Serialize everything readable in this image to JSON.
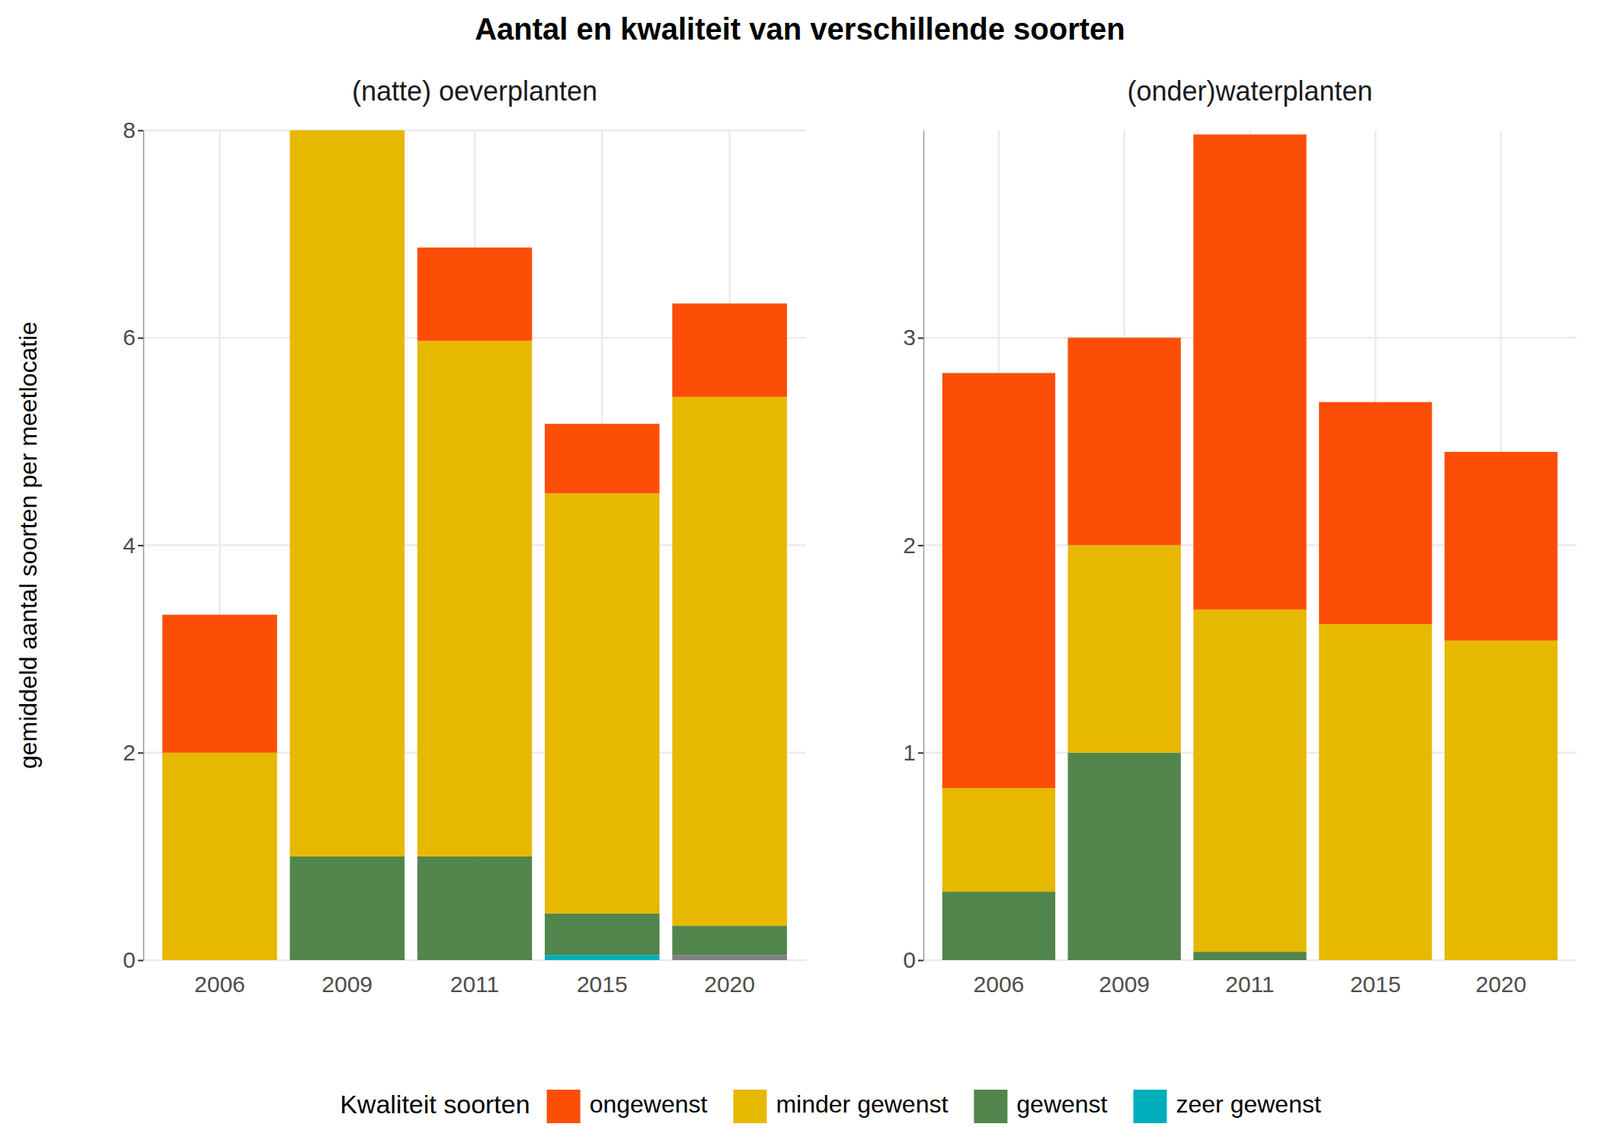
{
  "title": "Aantal en kwaliteit van verschillende soorten",
  "legend_title": "Kwaliteit soorten",
  "legend": "bottom",
  "chart_data": [
    {
      "type": "bar",
      "stacked": true,
      "grid": true,
      "subtitle": "(natte) oeverplanten",
      "y_label": "gemiddeld aantal soorten per meetlocatie",
      "categories": [
        "2006",
        "2009",
        "2011",
        "2015",
        "2020"
      ],
      "ylim": [
        0,
        8
      ],
      "yticks": [
        0,
        2,
        4,
        6,
        8
      ],
      "series": [
        {
          "name": "ongewenst",
          "color": "#FC4E07",
          "values": [
            1.33,
            0,
            0.9,
            0.67,
            0.9
          ]
        },
        {
          "name": "minder gewenst",
          "color": "#E7B800",
          "values": [
            2,
            7,
            4.97,
            4.05,
            5.1
          ]
        },
        {
          "name": "gewenst",
          "color": "#52854C",
          "values": [
            0,
            1,
            1,
            0.4,
            0.28
          ]
        },
        {
          "name": "zeer gewenst",
          "color": "#00AFBB",
          "values": [
            0,
            0,
            0,
            0.05,
            0
          ]
        },
        {
          "color": "#808080",
          "values": [
            0,
            0,
            0,
            0,
            0.05
          ]
        }
      ]
    },
    {
      "type": "bar",
      "stacked": true,
      "grid": true,
      "subtitle": "(onder)waterplanten",
      "categories": [
        "2006",
        "2009",
        "2011",
        "2015",
        "2020"
      ],
      "ylim": [
        0,
        4
      ],
      "yticks": [
        0,
        1,
        2,
        3
      ],
      "series": [
        {
          "name": "ongewenst",
          "color": "#FC4E07",
          "values": [
            2.0,
            1,
            2.29,
            1.07,
            0.91
          ]
        },
        {
          "name": "minder gewenst",
          "color": "#E7B800",
          "values": [
            0.5,
            1,
            1.65,
            1.62,
            1.54
          ]
        },
        {
          "name": "gewenst",
          "color": "#52854C",
          "values": [
            0.33,
            1,
            0.04,
            0,
            0
          ]
        },
        {
          "name": "zeer gewenst",
          "color": "#00AFBB",
          "values": [
            0,
            0,
            0,
            0,
            0
          ]
        }
      ]
    }
  ]
}
